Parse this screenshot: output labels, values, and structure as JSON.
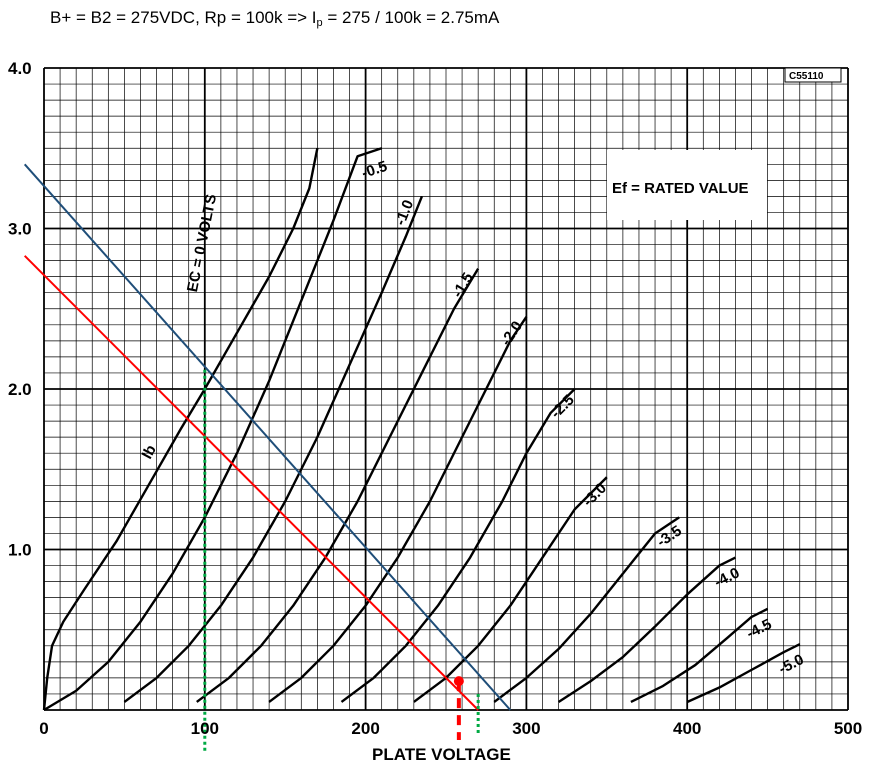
{
  "header": {
    "formula_part1": "B+ = B2 = 275VDC, Rp = 100k => I",
    "formula_sub": "p",
    "formula_part2": " = 275 / 100k = 2.75mA"
  },
  "chart_data": {
    "type": "line",
    "xlabel": "PLATE VOLTAGE",
    "ylabel": "",
    "xlim": [
      0,
      500
    ],
    "ylim": [
      0,
      4.0
    ],
    "x_ticks": [
      "0",
      "100",
      "200",
      "300",
      "400",
      "500"
    ],
    "y_ticks": [
      "1.0",
      "2.0",
      "3.0",
      "4.0"
    ],
    "grid": true,
    "corner_code": "C55110",
    "box_text": "Ef = RATED VALUE",
    "ib_label": "Ib",
    "grid_curves": [
      {
        "label": "EC = 0 VOLTS",
        "points": [
          [
            0,
            0
          ],
          [
            2,
            0.2
          ],
          [
            5,
            0.4
          ],
          [
            12,
            0.55
          ],
          [
            25,
            0.75
          ],
          [
            45,
            1.05
          ],
          [
            65,
            1.4
          ],
          [
            85,
            1.75
          ],
          [
            100,
            2.0
          ],
          [
            120,
            2.35
          ],
          [
            140,
            2.7
          ],
          [
            155,
            3.0
          ],
          [
            165,
            3.25
          ],
          [
            170,
            3.5
          ]
        ]
      },
      {
        "label": "-0.5",
        "points": [
          [
            0,
            0
          ],
          [
            20,
            0.12
          ],
          [
            40,
            0.3
          ],
          [
            60,
            0.55
          ],
          [
            80,
            0.85
          ],
          [
            100,
            1.2
          ],
          [
            120,
            1.6
          ],
          [
            140,
            2.05
          ],
          [
            160,
            2.55
          ],
          [
            180,
            3.05
          ],
          [
            195,
            3.45
          ],
          [
            210,
            3.5
          ]
        ]
      },
      {
        "label": "-1.0",
        "points": [
          [
            50,
            0.05
          ],
          [
            70,
            0.2
          ],
          [
            90,
            0.4
          ],
          [
            110,
            0.65
          ],
          [
            130,
            0.95
          ],
          [
            150,
            1.3
          ],
          [
            170,
            1.7
          ],
          [
            190,
            2.15
          ],
          [
            210,
            2.6
          ],
          [
            225,
            2.95
          ],
          [
            235,
            3.2
          ]
        ]
      },
      {
        "label": "-1.5",
        "points": [
          [
            95,
            0.05
          ],
          [
            115,
            0.2
          ],
          [
            135,
            0.4
          ],
          [
            155,
            0.65
          ],
          [
            175,
            0.95
          ],
          [
            195,
            1.3
          ],
          [
            215,
            1.7
          ],
          [
            235,
            2.1
          ],
          [
            255,
            2.5
          ],
          [
            270,
            2.75
          ]
        ]
      },
      {
        "label": "-2.0",
        "points": [
          [
            140,
            0.05
          ],
          [
            160,
            0.2
          ],
          [
            180,
            0.4
          ],
          [
            200,
            0.65
          ],
          [
            220,
            0.95
          ],
          [
            240,
            1.3
          ],
          [
            260,
            1.7
          ],
          [
            275,
            2.0
          ],
          [
            290,
            2.3
          ],
          [
            300,
            2.45
          ]
        ]
      },
      {
        "label": "-2.5",
        "points": [
          [
            185,
            0.05
          ],
          [
            205,
            0.2
          ],
          [
            225,
            0.4
          ],
          [
            245,
            0.65
          ],
          [
            265,
            0.95
          ],
          [
            285,
            1.3
          ],
          [
            300,
            1.6
          ],
          [
            315,
            1.85
          ],
          [
            330,
            2.0
          ]
        ]
      },
      {
        "label": "-3.0",
        "points": [
          [
            230,
            0.05
          ],
          [
            250,
            0.2
          ],
          [
            270,
            0.4
          ],
          [
            290,
            0.65
          ],
          [
            310,
            0.95
          ],
          [
            330,
            1.25
          ],
          [
            350,
            1.45
          ]
        ]
      },
      {
        "label": "-3.5",
        "points": [
          [
            280,
            0.05
          ],
          [
            300,
            0.2
          ],
          [
            320,
            0.38
          ],
          [
            340,
            0.6
          ],
          [
            360,
            0.85
          ],
          [
            380,
            1.1
          ],
          [
            395,
            1.2
          ]
        ]
      },
      {
        "label": "-4.0",
        "points": [
          [
            320,
            0.05
          ],
          [
            340,
            0.18
          ],
          [
            360,
            0.33
          ],
          [
            380,
            0.52
          ],
          [
            400,
            0.72
          ],
          [
            420,
            0.9
          ],
          [
            430,
            0.95
          ]
        ]
      },
      {
        "label": "-4.5",
        "points": [
          [
            365,
            0.05
          ],
          [
            385,
            0.15
          ],
          [
            405,
            0.28
          ],
          [
            425,
            0.45
          ],
          [
            440,
            0.58
          ],
          [
            450,
            0.63
          ]
        ]
      },
      {
        "label": "-5.0",
        "points": [
          [
            400,
            0.05
          ],
          [
            420,
            0.14
          ],
          [
            440,
            0.25
          ],
          [
            460,
            0.36
          ],
          [
            470,
            0.41
          ]
        ]
      }
    ],
    "load_lines": [
      {
        "color": "#1f4e79",
        "points": [
          [
            -12,
            3.4
          ],
          [
            290,
            0
          ]
        ]
      },
      {
        "color": "#ff0000",
        "points": [
          [
            -12,
            2.83
          ],
          [
            270,
            0
          ]
        ]
      }
    ],
    "markers": {
      "operating_point": [
        258,
        0.18
      ],
      "operating_point_color": "#ff0000",
      "dashed_red_x": 258,
      "dashed_green_x": [
        100,
        270
      ],
      "green_color": "#00aa44"
    }
  }
}
